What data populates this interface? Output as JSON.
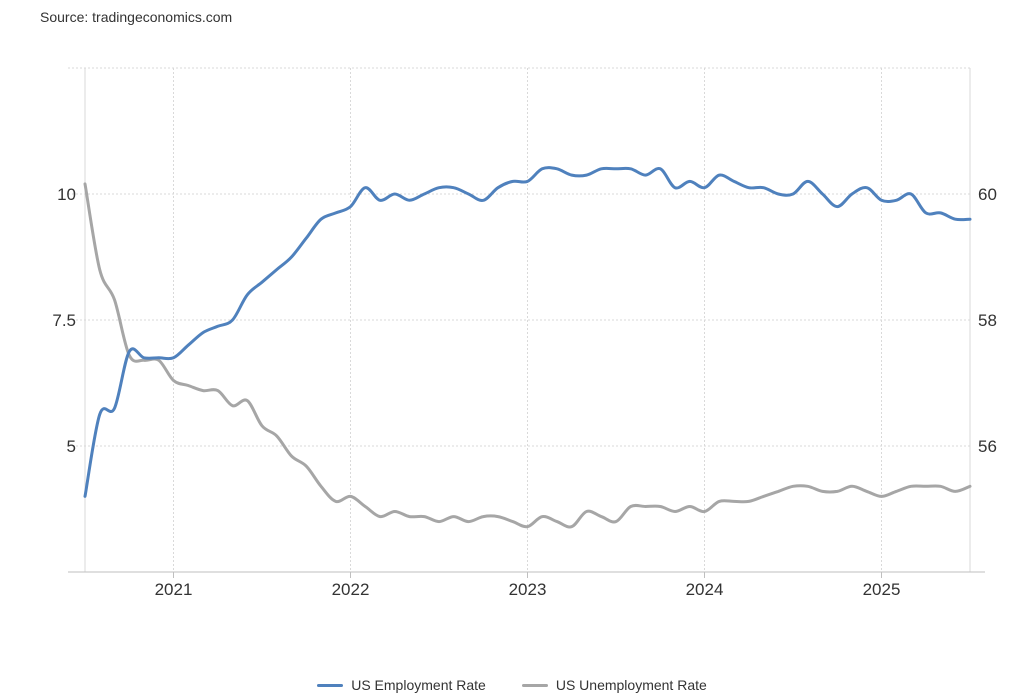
{
  "source": "Source: tradingeconomics.com",
  "chart_data": {
    "type": "line",
    "grid": true,
    "legend_position": "bottom-center",
    "x_ticks": [
      "2021",
      "2022",
      "2023",
      "2024",
      "2025"
    ],
    "y_left": {
      "ticks": [
        "5",
        "7.5",
        "10"
      ],
      "range": [
        2.5,
        12.5
      ]
    },
    "y_right": {
      "ticks": [
        "56",
        "58",
        "60"
      ],
      "range": [
        54,
        62
      ]
    },
    "series": [
      {
        "name": "US Employment Rate",
        "axis": "right",
        "color": "#4f81bd",
        "points": [
          [
            "2020-07",
            55.2
          ],
          [
            "2020-08",
            56.5
          ],
          [
            "2020-09",
            56.6
          ],
          [
            "2020-10",
            57.5
          ],
          [
            "2020-11",
            57.4
          ],
          [
            "2020-12",
            57.4
          ],
          [
            "2021-01",
            57.4
          ],
          [
            "2021-02",
            57.6
          ],
          [
            "2021-03",
            57.8
          ],
          [
            "2021-04",
            57.9
          ],
          [
            "2021-05",
            58.0
          ],
          [
            "2021-06",
            58.4
          ],
          [
            "2021-07",
            58.6
          ],
          [
            "2021-08",
            58.8
          ],
          [
            "2021-09",
            59.0
          ],
          [
            "2021-10",
            59.3
          ],
          [
            "2021-11",
            59.6
          ],
          [
            "2021-12",
            59.7
          ],
          [
            "2022-01",
            59.8
          ],
          [
            "2022-02",
            60.1
          ],
          [
            "2022-03",
            59.9
          ],
          [
            "2022-04",
            60.0
          ],
          [
            "2022-05",
            59.9
          ],
          [
            "2022-06",
            60.0
          ],
          [
            "2022-07",
            60.1
          ],
          [
            "2022-08",
            60.1
          ],
          [
            "2022-09",
            60.0
          ],
          [
            "2022-10",
            59.9
          ],
          [
            "2022-11",
            60.1
          ],
          [
            "2022-12",
            60.2
          ],
          [
            "2023-01",
            60.2
          ],
          [
            "2023-02",
            60.4
          ],
          [
            "2023-03",
            60.4
          ],
          [
            "2023-04",
            60.3
          ],
          [
            "2023-05",
            60.3
          ],
          [
            "2023-06",
            60.4
          ],
          [
            "2023-07",
            60.4
          ],
          [
            "2023-08",
            60.4
          ],
          [
            "2023-09",
            60.3
          ],
          [
            "2023-10",
            60.4
          ],
          [
            "2023-11",
            60.1
          ],
          [
            "2023-12",
            60.2
          ],
          [
            "2024-01",
            60.1
          ],
          [
            "2024-02",
            60.3
          ],
          [
            "2024-03",
            60.2
          ],
          [
            "2024-04",
            60.1
          ],
          [
            "2024-05",
            60.1
          ],
          [
            "2024-06",
            60.0
          ],
          [
            "2024-07",
            60.0
          ],
          [
            "2024-08",
            60.2
          ],
          [
            "2024-09",
            60.0
          ],
          [
            "2024-10",
            59.8
          ],
          [
            "2024-11",
            60.0
          ],
          [
            "2024-12",
            60.1
          ],
          [
            "2025-01",
            59.9
          ],
          [
            "2025-02",
            59.9
          ],
          [
            "2025-03",
            60.0
          ],
          [
            "2025-04",
            59.7
          ],
          [
            "2025-05",
            59.7
          ],
          [
            "2025-06",
            59.6
          ],
          [
            "2025-07",
            59.6
          ]
        ]
      },
      {
        "name": "US Unemployment Rate",
        "axis": "left",
        "color": "#a6a6a6",
        "points": [
          [
            "2020-07",
            10.2
          ],
          [
            "2020-08",
            8.5
          ],
          [
            "2020-09",
            7.9
          ],
          [
            "2020-10",
            6.8
          ],
          [
            "2020-11",
            6.7
          ],
          [
            "2020-12",
            6.7
          ],
          [
            "2021-01",
            6.3
          ],
          [
            "2021-02",
            6.2
          ],
          [
            "2021-03",
            6.1
          ],
          [
            "2021-04",
            6.1
          ],
          [
            "2021-05",
            5.8
          ],
          [
            "2021-06",
            5.9
          ],
          [
            "2021-07",
            5.4
          ],
          [
            "2021-08",
            5.2
          ],
          [
            "2021-09",
            4.8
          ],
          [
            "2021-10",
            4.6
          ],
          [
            "2021-11",
            4.2
          ],
          [
            "2021-12",
            3.9
          ],
          [
            "2022-01",
            4.0
          ],
          [
            "2022-02",
            3.8
          ],
          [
            "2022-03",
            3.6
          ],
          [
            "2022-04",
            3.7
          ],
          [
            "2022-05",
            3.6
          ],
          [
            "2022-06",
            3.6
          ],
          [
            "2022-07",
            3.5
          ],
          [
            "2022-08",
            3.6
          ],
          [
            "2022-09",
            3.5
          ],
          [
            "2022-10",
            3.6
          ],
          [
            "2022-11",
            3.6
          ],
          [
            "2022-12",
            3.5
          ],
          [
            "2023-01",
            3.4
          ],
          [
            "2023-02",
            3.6
          ],
          [
            "2023-03",
            3.5
          ],
          [
            "2023-04",
            3.4
          ],
          [
            "2023-05",
            3.7
          ],
          [
            "2023-06",
            3.6
          ],
          [
            "2023-07",
            3.5
          ],
          [
            "2023-08",
            3.8
          ],
          [
            "2023-09",
            3.8
          ],
          [
            "2023-10",
            3.8
          ],
          [
            "2023-11",
            3.7
          ],
          [
            "2023-12",
            3.8
          ],
          [
            "2024-01",
            3.7
          ],
          [
            "2024-02",
            3.9
          ],
          [
            "2024-03",
            3.9
          ],
          [
            "2024-04",
            3.9
          ],
          [
            "2024-05",
            4.0
          ],
          [
            "2024-06",
            4.1
          ],
          [
            "2024-07",
            4.2
          ],
          [
            "2024-08",
            4.2
          ],
          [
            "2024-09",
            4.1
          ],
          [
            "2024-10",
            4.1
          ],
          [
            "2024-11",
            4.2
          ],
          [
            "2024-12",
            4.1
          ],
          [
            "2025-01",
            4.0
          ],
          [
            "2025-02",
            4.1
          ],
          [
            "2025-03",
            4.2
          ],
          [
            "2025-04",
            4.2
          ],
          [
            "2025-05",
            4.2
          ],
          [
            "2025-06",
            4.1
          ],
          [
            "2025-07",
            4.2
          ]
        ]
      }
    ]
  }
}
